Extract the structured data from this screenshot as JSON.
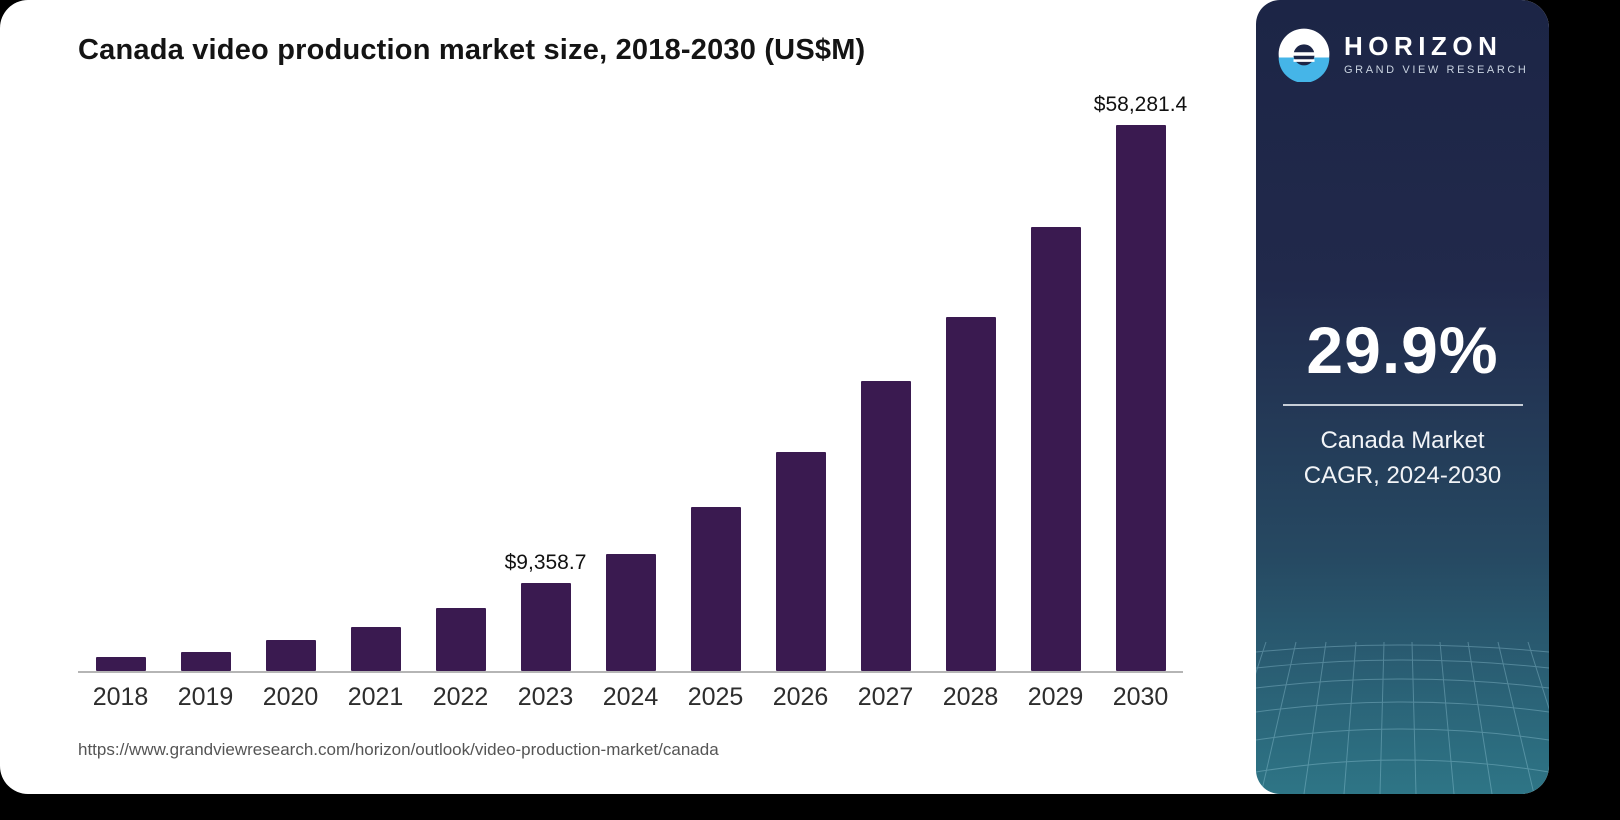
{
  "chart_data": {
    "type": "bar",
    "title": "Canada video production market size, 2018-2030 (US$M)",
    "categories": [
      "2018",
      "2019",
      "2020",
      "2021",
      "2022",
      "2023",
      "2024",
      "2025",
      "2026",
      "2027",
      "2028",
      "2029",
      "2030"
    ],
    "values": [
      1500,
      2050,
      3300,
      4700,
      6700,
      9358.7,
      12500,
      17500,
      23400,
      31000,
      37800,
      47400,
      58281.4
    ],
    "point_labels": [
      "",
      "",
      "",
      "",
      "",
      "$9,358.7",
      "",
      "",
      "",
      "",
      "",
      "",
      "$58,281.4"
    ],
    "xlabel": "",
    "ylabel": "US$M",
    "ylim": [
      0,
      60000
    ],
    "grid": false,
    "legend": "none",
    "bar_color": "#3a1a50"
  },
  "footer": {
    "source_url": "https://www.grandviewresearch.com/horizon/outlook/video-production-market/canada"
  },
  "sidebar": {
    "brand_name": "HORIZON",
    "brand_sub": "GRAND VIEW RESEARCH",
    "cagr_value": "29.9%",
    "caption_line1": "Canada Market",
    "caption_line2": "CAGR, 2024-2030"
  },
  "colors": {
    "bar": "#3a1a50",
    "sidebar_top": "#1c2546",
    "sidebar_bottom": "#2e7586",
    "accent_blue": "#45b5e8"
  }
}
